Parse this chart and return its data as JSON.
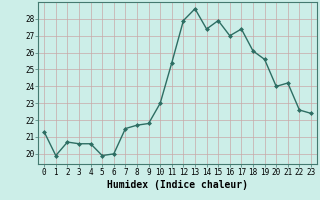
{
  "x": [
    0,
    1,
    2,
    3,
    4,
    5,
    6,
    7,
    8,
    9,
    10,
    11,
    12,
    13,
    14,
    15,
    16,
    17,
    18,
    19,
    20,
    21,
    22,
    23
  ],
  "y": [
    21.3,
    19.9,
    20.7,
    20.6,
    20.6,
    19.9,
    20.0,
    21.5,
    21.7,
    21.8,
    23.0,
    25.4,
    27.9,
    28.6,
    27.4,
    27.9,
    27.0,
    27.4,
    26.1,
    25.6,
    24.0,
    24.2,
    22.6,
    22.4
  ],
  "line_color": "#2d6e63",
  "marker": "D",
  "marker_size": 2.0,
  "linewidth": 1.0,
  "bg_color": "#cceee8",
  "grid_color_major": "#c8a8a8",
  "grid_color_minor": "#ddd0d0",
  "xlabel": "Humidex (Indice chaleur)",
  "xlabel_fontsize": 7,
  "ylabel_ticks": [
    20,
    21,
    22,
    23,
    24,
    25,
    26,
    27,
    28
  ],
  "ylim": [
    19.4,
    29.0
  ],
  "xlim": [
    -0.5,
    23.5
  ],
  "xtick_labels": [
    "0",
    "1",
    "2",
    "3",
    "4",
    "5",
    "6",
    "7",
    "8",
    "9",
    "10",
    "11",
    "12",
    "13",
    "14",
    "15",
    "16",
    "17",
    "18",
    "19",
    "20",
    "21",
    "22",
    "23"
  ],
  "tick_fontsize": 5.5,
  "spine_color": "#447a70"
}
